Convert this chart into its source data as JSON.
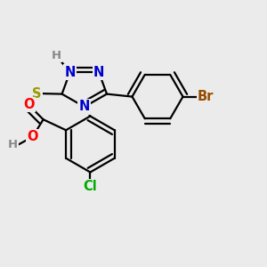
{
  "bg_color": "#ebebeb",
  "bond_color": "#000000",
  "bond_width": 1.6,
  "atom_bg": "#ebebeb",
  "colors": {
    "N": "#0000cc",
    "S": "#999900",
    "O": "#ff0000",
    "Cl": "#00aa00",
    "Br": "#964B00",
    "H": "#888888",
    "C": "#000000"
  },
  "fontsize": 10.5
}
